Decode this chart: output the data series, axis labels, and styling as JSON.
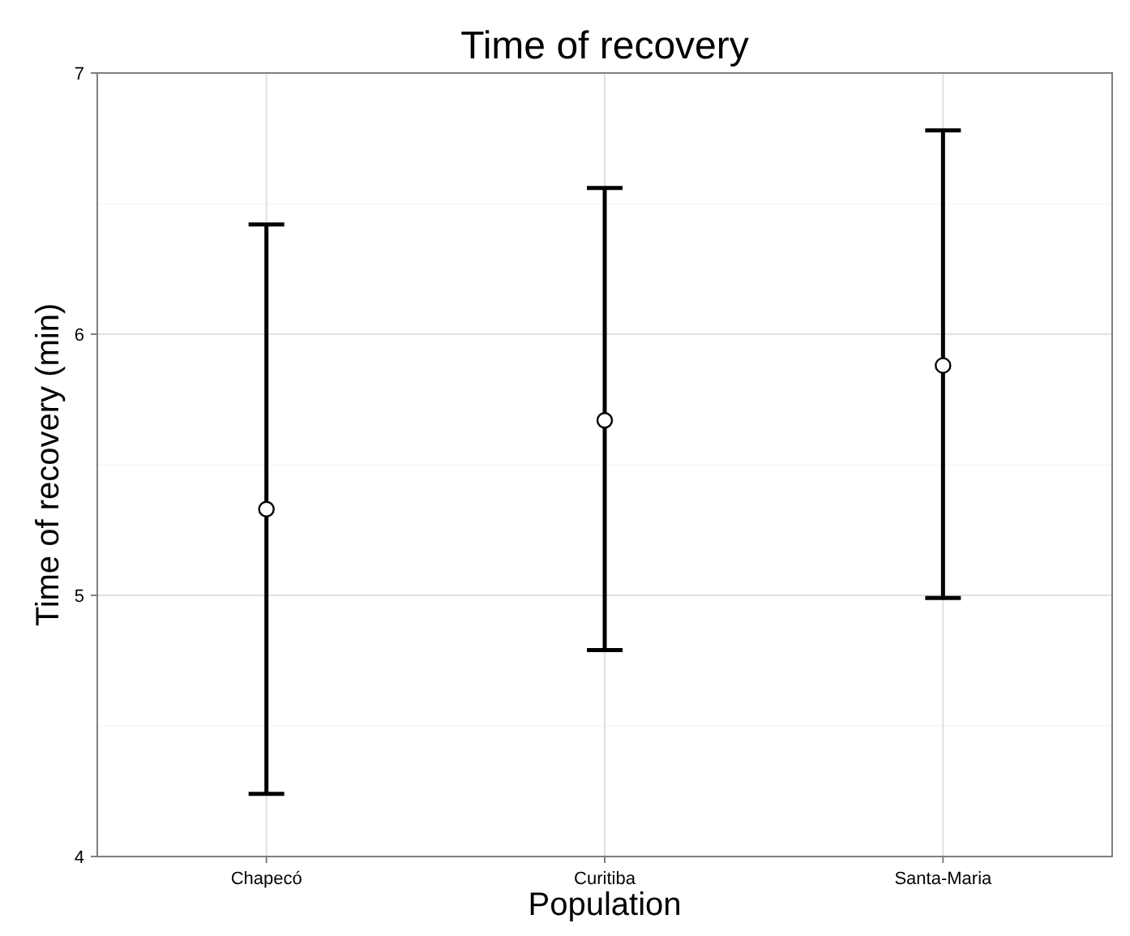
{
  "chart_data": {
    "type": "scatter",
    "title": "Time of recovery",
    "xlabel": "Population",
    "ylabel": "Time of recovery (min)",
    "categories": [
      "Chapecó",
      "Curitiba",
      "Santa-Maria"
    ],
    "series": [
      {
        "color": "#000000",
        "values": [
          5.33,
          5.67,
          5.88
        ],
        "errors": [
          [
            4.24,
            6.42
          ],
          [
            4.79,
            6.56
          ],
          [
            4.99,
            6.78
          ]
        ]
      }
    ],
    "ylim": [
      4,
      7
    ],
    "yticks": [
      4,
      {
        "value": 4.5,
        "label": null
      },
      5,
      {
        "value": 5.5,
        "label": null
      },
      6,
      {
        "value": 6.5,
        "label": null
      },
      7
    ],
    "grid": true,
    "marker": "circle"
  }
}
